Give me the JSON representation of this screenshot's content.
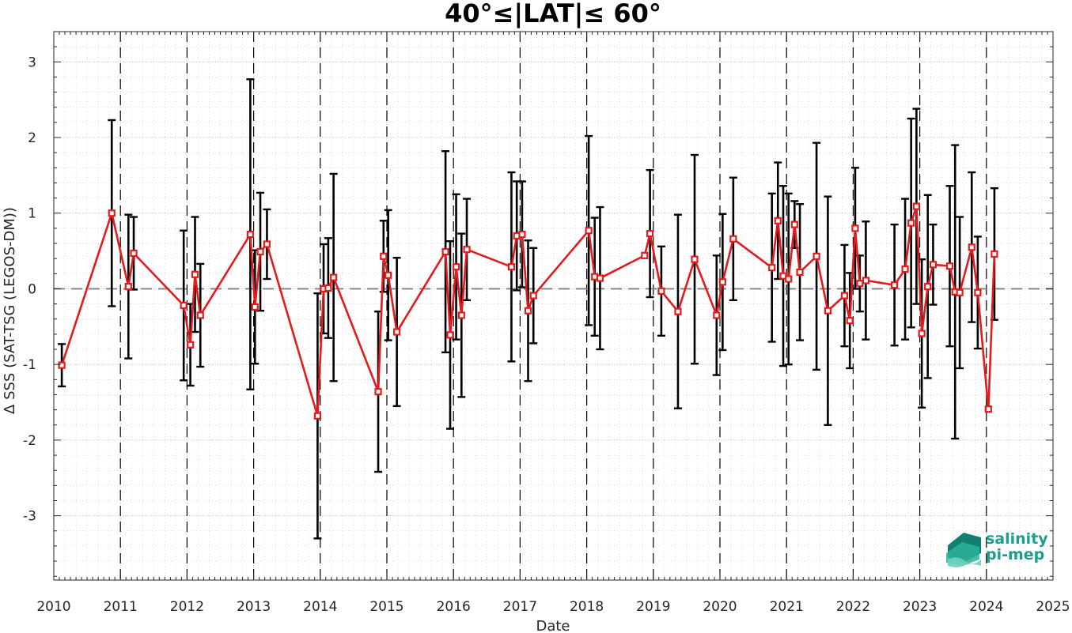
{
  "chart_data": {
    "type": "line",
    "title": "40°≤|LAT|≤ 60°",
    "xlabel": "Date",
    "ylabel": "Δ SSS (SAT-TSG (LEGOS-DM))",
    "xlim": [
      2010,
      2025
    ],
    "ylim": [
      -3.85,
      3.4
    ],
    "xticks": [
      2010,
      2011,
      2012,
      2013,
      2014,
      2015,
      2016,
      2017,
      2018,
      2019,
      2020,
      2021,
      2022,
      2023,
      2024,
      2025
    ],
    "xtick_labels": [
      "2010",
      "2011",
      "2012",
      "2013",
      "2014",
      "2015",
      "2016",
      "2017",
      "2018",
      "2019",
      "2020",
      "2021",
      "2022",
      "2023",
      "2024",
      "2025"
    ],
    "yticks": [
      -3,
      -2,
      -1,
      0,
      1,
      2,
      3
    ],
    "ytick_labels": [
      "-3",
      "-2",
      "-1",
      "0",
      "1",
      "2",
      "3"
    ],
    "year_boundaries": [
      2011,
      2012,
      2013,
      2014,
      2015,
      2016,
      2017,
      2018,
      2019,
      2020,
      2021,
      2022,
      2023,
      2024
    ],
    "zero_line": 0,
    "grid": true,
    "series": [
      {
        "marker": "square",
        "color": "#e41a1c",
        "errorbar_color": "#000000",
        "x": [
          2010.12,
          2010.87,
          2011.12,
          2011.2,
          2011.95,
          2012.05,
          2012.12,
          2012.2,
          2012.95,
          2013.02,
          2013.1,
          2013.2,
          2013.96,
          2014.05,
          2014.12,
          2014.2,
          2014.87,
          2014.95,
          2015.02,
          2015.15,
          2015.88,
          2015.95,
          2016.04,
          2016.12,
          2016.2,
          2016.87,
          2016.95,
          2017.03,
          2017.12,
          2017.2,
          2018.03,
          2018.12,
          2018.2,
          2018.87,
          2018.95,
          2019.12,
          2019.37,
          2019.62,
          2019.95,
          2020.04,
          2020.2,
          2020.78,
          2020.87,
          2020.95,
          2021.03,
          2021.12,
          2021.2,
          2021.45,
          2021.62,
          2021.87,
          2021.95,
          2022.03,
          2022.1,
          2022.19,
          2022.62,
          2022.78,
          2022.87,
          2022.95,
          2023.03,
          2023.12,
          2023.2,
          2023.45,
          2023.53,
          2023.6,
          2023.78,
          2023.87,
          2024.03,
          2024.12
        ],
        "y": [
          -1.01,
          1.0,
          0.03,
          0.47,
          -0.22,
          -0.74,
          0.19,
          -0.35,
          0.72,
          -0.24,
          0.49,
          0.59,
          -1.68,
          0.0,
          0.01,
          0.15,
          -1.36,
          0.43,
          0.18,
          -0.57,
          0.49,
          -0.61,
          0.29,
          -0.35,
          0.52,
          0.29,
          0.7,
          0.72,
          -0.29,
          -0.09,
          0.77,
          0.16,
          0.14,
          0.44,
          0.73,
          -0.03,
          -0.3,
          0.39,
          -0.35,
          0.09,
          0.66,
          0.28,
          0.9,
          0.17,
          0.13,
          0.85,
          0.22,
          0.43,
          -0.29,
          -0.09,
          -0.42,
          0.8,
          0.07,
          0.11,
          0.05,
          0.26,
          0.87,
          1.09,
          -0.59,
          0.03,
          0.32,
          0.3,
          -0.04,
          -0.05,
          0.55,
          -0.05,
          -1.59,
          0.46
        ],
        "err": [
          0.28,
          1.23,
          0.95,
          0.48,
          0.99,
          0.54,
          0.76,
          0.68,
          2.05,
          0.75,
          0.78,
          0.46,
          1.62,
          0.59,
          0.66,
          1.37,
          1.06,
          0.47,
          0.86,
          0.98,
          1.33,
          1.24,
          0.96,
          1.08,
          0.67,
          1.25,
          0.72,
          0.7,
          0.93,
          0.63,
          1.25,
          0.78,
          0.94,
          0.0,
          0.84,
          0.59,
          1.28,
          1.38,
          0.79,
          0.9,
          0.81,
          0.98,
          0.77,
          1.19,
          1.13,
          0.31,
          0.9,
          1.5,
          1.51,
          0.67,
          0.63,
          0.8,
          0.37,
          0.78,
          0.8,
          0.93,
          1.38,
          1.29,
          0.98,
          1.21,
          0.53,
          1.06,
          1.94,
          1.0,
          0.99,
          0.74,
          0.0,
          0.87
        ]
      }
    ],
    "logo": {
      "line1": "salinity",
      "line2": "pi-mep",
      "color": "#1a9e8f"
    }
  }
}
